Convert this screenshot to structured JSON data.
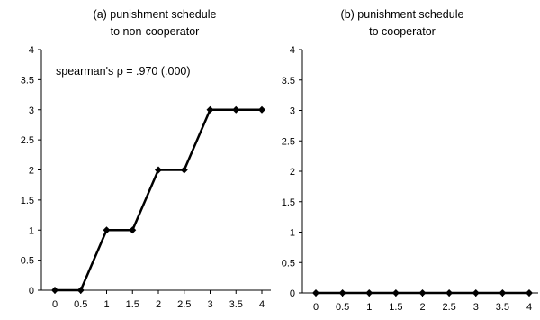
{
  "chart_data": [
    {
      "type": "line",
      "title_lines": [
        "(a) punishment schedule",
        "to non-cooperator"
      ],
      "annotation": "spearman's ρ = .970 (.000)",
      "x_tick_labels": [
        "0",
        "0.5",
        "1",
        "1.5",
        "2",
        "2.5",
        "3",
        "3.5",
        "4"
      ],
      "y_tick_labels": [
        "0",
        "0.5",
        "1",
        "1.5",
        "2",
        "2.5",
        "3",
        "3.5",
        "4"
      ],
      "xlim": [
        0,
        4
      ],
      "ylim": [
        0,
        4
      ],
      "grid": false,
      "marker": "diamond",
      "color": "#000000",
      "series": [
        {
          "x": [
            0,
            0.5,
            1,
            1.5,
            2,
            2.5,
            3,
            3.5,
            4
          ],
          "values": [
            0,
            0,
            1,
            1,
            2,
            2,
            3,
            3,
            3
          ]
        }
      ]
    },
    {
      "type": "line",
      "title_lines": [
        "(b) punishment schedule",
        "to cooperator"
      ],
      "x_tick_labels": [
        "0",
        "0.5",
        "1",
        "1.5",
        "2",
        "2.5",
        "3",
        "3.5",
        "4"
      ],
      "y_tick_labels": [
        "0",
        "0.5",
        "1",
        "1.5",
        "2",
        "2.5",
        "3",
        "3.5",
        "4"
      ],
      "xlim": [
        0,
        4
      ],
      "ylim": [
        0,
        4
      ],
      "grid": false,
      "marker": "diamond",
      "color": "#000000",
      "series": [
        {
          "x": [
            0,
            0.5,
            1,
            1.5,
            2,
            2.5,
            3,
            3.5,
            4
          ],
          "values": [
            0,
            0,
            0,
            0,
            0,
            0,
            0,
            0,
            0
          ]
        }
      ]
    }
  ]
}
